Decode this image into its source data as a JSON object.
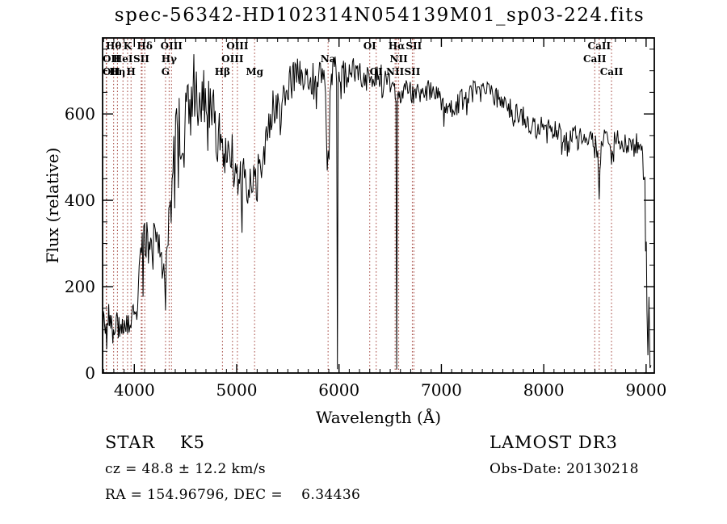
{
  "title": "spec-56342-HD102314N054139M01_sp03-224.fits",
  "colors": {
    "background": "#ffffff",
    "spectrum": "#000000",
    "frame": "#000000",
    "line_marker": "#9e3a32",
    "text": "#000000"
  },
  "annotations": {
    "left": {
      "class_line": "STAR    K5",
      "cz_line": "cz = 48.8 ± 12.2 km/s",
      "radec_line": "RA = 154.96796, DEC =    6.34436"
    },
    "right": {
      "survey_line": "LAMOST DR3",
      "obsdate_line": "Obs-Date: 20130218"
    }
  },
  "chart_data": {
    "type": "line",
    "title": "spec-56342-HD102314N054139M01_sp03-224.fits",
    "xlabel": "Wavelength (Å)",
    "ylabel": "Flux (relative)",
    "xlim": [
      3690,
      9080
    ],
    "ylim": [
      0,
      776
    ],
    "x_major_ticks": [
      4000,
      5000,
      6000,
      7000,
      8000,
      9000
    ],
    "x_minor_step": 100,
    "y_major_ticks": [
      0,
      200,
      400,
      600
    ],
    "y_minor_step": 50,
    "grid": false,
    "legend": "none",
    "noise_seed": 20130218,
    "sample_step_angstrom": 8,
    "line_markers": [
      {
        "wavelength": 3726,
        "label": "OII",
        "row": 3
      },
      {
        "wavelength": 3729,
        "label": "OII",
        "row": 2
      },
      {
        "wavelength": 3798,
        "label": "Hθ",
        "row": 1
      },
      {
        "wavelength": 3835,
        "label": "Hη",
        "row": 3
      },
      {
        "wavelength": 3889,
        "label": "HeI",
        "row": 2
      },
      {
        "wavelength": 3934,
        "label": "K",
        "row": 1
      },
      {
        "wavelength": 3968,
        "label": "H",
        "row": 3
      },
      {
        "wavelength": 4068,
        "label": "SII",
        "row": 2
      },
      {
        "wavelength": 4076,
        "label": "",
        "row": 2
      },
      {
        "wavelength": 4102,
        "label": "Hδ",
        "row": 1
      },
      {
        "wavelength": 4305,
        "label": "G",
        "row": 3
      },
      {
        "wavelength": 4340,
        "label": "Hγ",
        "row": 2
      },
      {
        "wavelength": 4363,
        "label": "OIII",
        "row": 1
      },
      {
        "wavelength": 4861,
        "label": "Hβ",
        "row": 3
      },
      {
        "wavelength": 4959,
        "label": "OIII",
        "row": 2
      },
      {
        "wavelength": 5007,
        "label": "OIII",
        "row": 1
      },
      {
        "wavelength": 5175,
        "label": "Mg",
        "row": 3
      },
      {
        "wavelength": 5893,
        "label": "Na",
        "row": 2
      },
      {
        "wavelength": 6300,
        "label": "OI",
        "row": 1
      },
      {
        "wavelength": 6363,
        "label": "OI",
        "row": 3
      },
      {
        "wavelength": 6548,
        "label": "NII",
        "row": 3
      },
      {
        "wavelength": 6563,
        "label": "Hα",
        "row": 1
      },
      {
        "wavelength": 6583,
        "label": "NII",
        "row": 2
      },
      {
        "wavelength": 6716,
        "label": "SII",
        "row": 3
      },
      {
        "wavelength": 6731,
        "label": "SII",
        "row": 1
      },
      {
        "wavelength": 8498,
        "label": "CaII",
        "row": 2
      },
      {
        "wavelength": 8542,
        "label": "CaII",
        "row": 1
      },
      {
        "wavelength": 8662,
        "label": "CaII",
        "row": 3
      }
    ],
    "spectrum_anchors": [
      [
        3690,
        10,
        10
      ],
      [
        3697,
        130,
        30
      ],
      [
        3710,
        125,
        40
      ],
      [
        3730,
        110,
        45
      ],
      [
        3750,
        125,
        35
      ],
      [
        3770,
        115,
        35
      ],
      [
        3790,
        95,
        30
      ],
      [
        3810,
        110,
        30
      ],
      [
        3830,
        115,
        30
      ],
      [
        3850,
        110,
        30
      ],
      [
        3870,
        120,
        35
      ],
      [
        3890,
        130,
        40
      ],
      [
        3910,
        125,
        35
      ],
      [
        3934,
        100,
        28
      ],
      [
        3950,
        115,
        28
      ],
      [
        3968,
        120,
        28
      ],
      [
        3990,
        135,
        32
      ],
      [
        4010,
        155,
        38
      ],
      [
        4040,
        195,
        45
      ],
      [
        4070,
        255,
        60
      ],
      [
        4100,
        310,
        65
      ],
      [
        4130,
        295,
        50
      ],
      [
        4160,
        305,
        45
      ],
      [
        4190,
        300,
        48
      ],
      [
        4220,
        305,
        50
      ],
      [
        4250,
        300,
        52
      ],
      [
        4280,
        245,
        62
      ],
      [
        4305,
        205,
        65
      ],
      [
        4330,
        300,
        60
      ],
      [
        4360,
        420,
        75
      ],
      [
        4395,
        495,
        85
      ],
      [
        4430,
        555,
        95
      ],
      [
        4470,
        595,
        95
      ],
      [
        4510,
        615,
        95
      ],
      [
        4550,
        635,
        95
      ],
      [
        4590,
        650,
        95
      ],
      [
        4630,
        660,
        85
      ],
      [
        4670,
        655,
        85
      ],
      [
        4710,
        645,
        80
      ],
      [
        4750,
        615,
        75
      ],
      [
        4790,
        575,
        70
      ],
      [
        4830,
        535,
        70
      ],
      [
        4861,
        505,
        65
      ],
      [
        4900,
        515,
        60
      ],
      [
        4940,
        510,
        60
      ],
      [
        4980,
        485,
        60
      ],
      [
        5020,
        460,
        58
      ],
      [
        5060,
        445,
        56
      ],
      [
        5100,
        435,
        56
      ],
      [
        5140,
        425,
        58
      ],
      [
        5175,
        415,
        70
      ],
      [
        5210,
        450,
        60
      ],
      [
        5250,
        495,
        60
      ],
      [
        5290,
        545,
        58
      ],
      [
        5330,
        590,
        55
      ],
      [
        5370,
        620,
        52
      ],
      [
        5410,
        645,
        50
      ],
      [
        5450,
        660,
        48
      ],
      [
        5490,
        670,
        46
      ],
      [
        5530,
        678,
        45
      ],
      [
        5570,
        685,
        44
      ],
      [
        5610,
        690,
        44
      ],
      [
        5650,
        682,
        44
      ],
      [
        5690,
        672,
        44
      ],
      [
        5730,
        678,
        42
      ],
      [
        5770,
        688,
        42
      ],
      [
        5810,
        695,
        40
      ],
      [
        5845,
        700,
        40
      ],
      [
        5868,
        665,
        45
      ],
      [
        5893,
        490,
        85
      ],
      [
        5912,
        625,
        50
      ],
      [
        5932,
        688,
        40
      ],
      [
        5955,
        700,
        38
      ],
      [
        5976,
        695,
        36
      ],
      [
        5984,
        8,
        6
      ],
      [
        5992,
        685,
        34
      ],
      [
        6020,
        692,
        34
      ],
      [
        6060,
        700,
        34
      ],
      [
        6100,
        694,
        32
      ],
      [
        6140,
        700,
        30
      ],
      [
        6180,
        694,
        30
      ],
      [
        6220,
        688,
        30
      ],
      [
        6260,
        682,
        30
      ],
      [
        6300,
        672,
        32
      ],
      [
        6340,
        678,
        30
      ],
      [
        6380,
        686,
        28
      ],
      [
        6420,
        690,
        28
      ],
      [
        6460,
        682,
        28
      ],
      [
        6500,
        672,
        28
      ],
      [
        6535,
        662,
        28
      ],
      [
        6556,
        652,
        28
      ],
      [
        6563,
        6,
        5
      ],
      [
        6572,
        650,
        28
      ],
      [
        6600,
        652,
        28
      ],
      [
        6640,
        656,
        26
      ],
      [
        6680,
        652,
        26
      ],
      [
        6720,
        646,
        28
      ],
      [
        6760,
        642,
        28
      ],
      [
        6800,
        650,
        26
      ],
      [
        6840,
        658,
        26
      ],
      [
        6880,
        652,
        26
      ],
      [
        6920,
        645,
        26
      ],
      [
        6960,
        638,
        26
      ],
      [
        7000,
        630,
        26
      ],
      [
        7040,
        622,
        26
      ],
      [
        7080,
        616,
        26
      ],
      [
        7120,
        618,
        26
      ],
      [
        7160,
        624,
        26
      ],
      [
        7200,
        632,
        26
      ],
      [
        7240,
        640,
        25
      ],
      [
        7280,
        648,
        25
      ],
      [
        7320,
        653,
        25
      ],
      [
        7360,
        657,
        24
      ],
      [
        7400,
        660,
        24
      ],
      [
        7440,
        656,
        24
      ],
      [
        7480,
        650,
        23
      ],
      [
        7520,
        642,
        23
      ],
      [
        7560,
        634,
        23
      ],
      [
        7600,
        625,
        24
      ],
      [
        7640,
        618,
        23
      ],
      [
        7680,
        611,
        23
      ],
      [
        7720,
        604,
        23
      ],
      [
        7760,
        598,
        23
      ],
      [
        7800,
        593,
        24
      ],
      [
        7840,
        584,
        25
      ],
      [
        7880,
        572,
        26
      ],
      [
        7920,
        566,
        25
      ],
      [
        7960,
        576,
        24
      ],
      [
        8000,
        573,
        23
      ],
      [
        8040,
        569,
        23
      ],
      [
        8080,
        565,
        23
      ],
      [
        8120,
        561,
        23
      ],
      [
        8160,
        556,
        24
      ],
      [
        8200,
        546,
        26
      ],
      [
        8230,
        522,
        34
      ],
      [
        8260,
        548,
        24
      ],
      [
        8300,
        554,
        23
      ],
      [
        8340,
        550,
        23
      ],
      [
        8380,
        546,
        23
      ],
      [
        8420,
        544,
        23
      ],
      [
        8460,
        544,
        23
      ],
      [
        8498,
        516,
        30
      ],
      [
        8520,
        538,
        24
      ],
      [
        8542,
        448,
        55
      ],
      [
        8562,
        536,
        24
      ],
      [
        8600,
        543,
        23
      ],
      [
        8630,
        538,
        24
      ],
      [
        8662,
        458,
        48
      ],
      [
        8690,
        536,
        24
      ],
      [
        8730,
        542,
        23
      ],
      [
        8770,
        537,
        24
      ],
      [
        8810,
        532,
        24
      ],
      [
        8850,
        537,
        24
      ],
      [
        8890,
        528,
        26
      ],
      [
        8930,
        536,
        24
      ],
      [
        8960,
        518,
        28
      ],
      [
        8980,
        470,
        45
      ],
      [
        8995,
        340,
        70
      ],
      [
        9008,
        195,
        75
      ],
      [
        9018,
        85,
        55
      ],
      [
        9028,
        160,
        70
      ],
      [
        9038,
        35,
        30
      ],
      [
        9048,
        12,
        12
      ]
    ]
  }
}
